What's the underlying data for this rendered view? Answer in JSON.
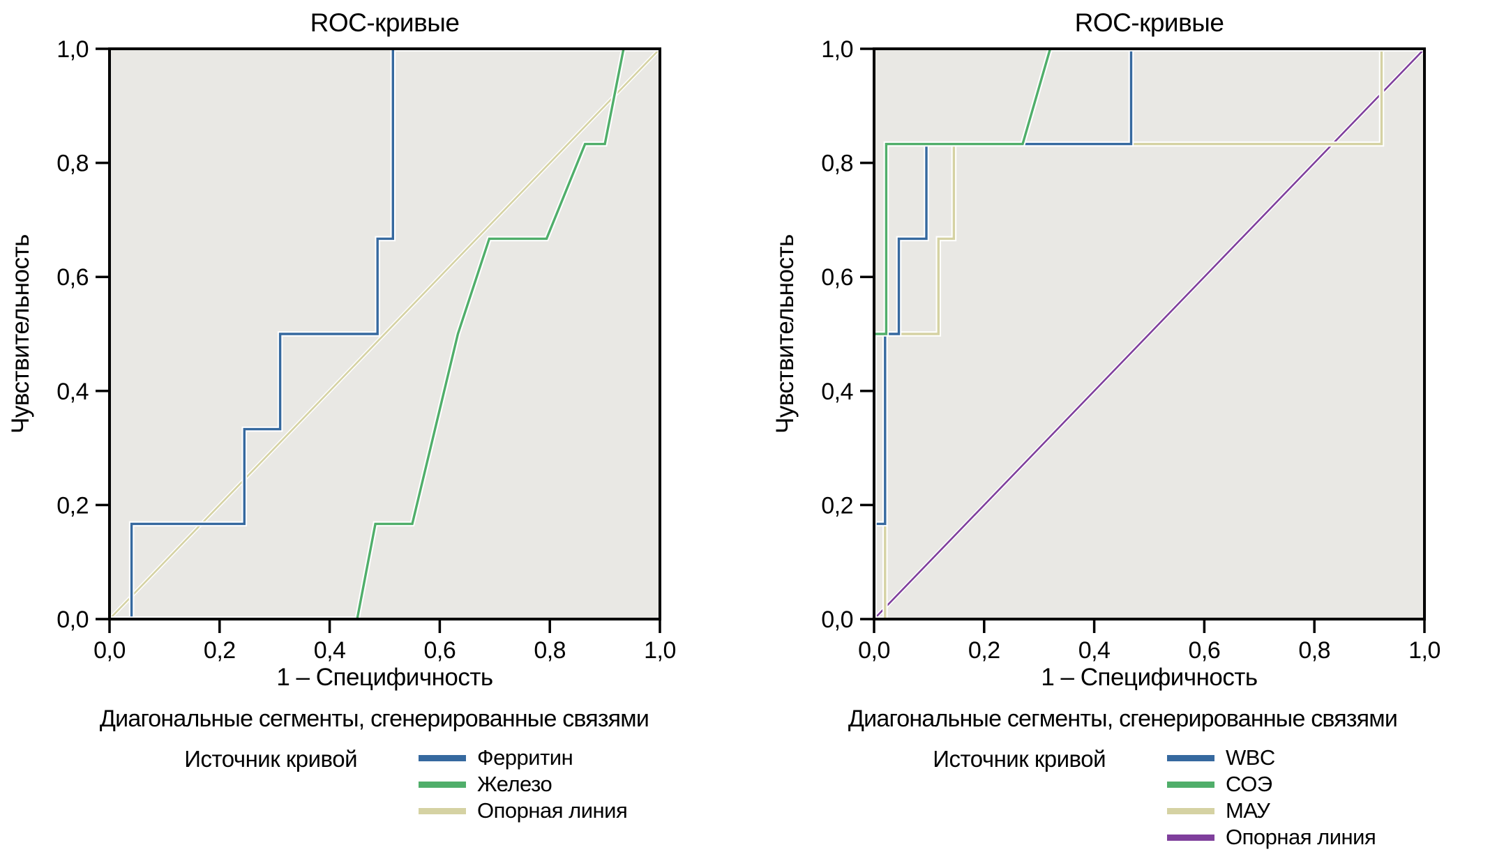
{
  "chart_data": [
    {
      "type": "line",
      "title": "ROC-кривые",
      "xlabel": "1 – Специфичность",
      "ylabel": "Чувствительность",
      "footer": "Диагональные сегменты, сгенерированные связями",
      "legend_title": "Источник кривой",
      "legend_position": "below",
      "grid": false,
      "plot_bg": "#e9e8e4",
      "frame_color": "#000000",
      "xlim": [
        0,
        1
      ],
      "ylim": [
        0,
        1
      ],
      "tick_values": [
        0,
        0.2,
        0.4,
        0.6,
        0.8,
        1
      ],
      "xtick_labels": [
        "0,0",
        "0,2",
        "0,4",
        "0,6",
        "0,8",
        "1,0"
      ],
      "ytick_labels": [
        "0,0",
        "0,2",
        "0,4",
        "0,6",
        "0,8",
        "1,0"
      ],
      "series": [
        {
          "name": "Ферритин",
          "color": "#36699f",
          "z": 1,
          "reference": false,
          "points": [
            [
              0,
              0
            ],
            [
              0.04,
              0
            ],
            [
              0.04,
              0.167
            ],
            [
              0.245,
              0.167
            ],
            [
              0.245,
              0.333
            ],
            [
              0.31,
              0.333
            ],
            [
              0.31,
              0.5
            ],
            [
              0.487,
              0.5
            ],
            [
              0.487,
              0.667
            ],
            [
              0.515,
              0.667
            ],
            [
              0.515,
              1
            ],
            [
              1,
              1
            ]
          ]
        },
        {
          "name": "Железо",
          "color": "#50ae6a",
          "z": 2,
          "reference": false,
          "points": [
            [
              0,
              0
            ],
            [
              0.45,
              0
            ],
            [
              0.483,
              0.167
            ],
            [
              0.55,
              0.167
            ],
            [
              0.633,
              0.5
            ],
            [
              0.69,
              0.667
            ],
            [
              0.794,
              0.667
            ],
            [
              0.864,
              0.833
            ],
            [
              0.9,
              0.833
            ],
            [
              0.934,
              1
            ],
            [
              1,
              1
            ]
          ]
        },
        {
          "name": "Опорная линия",
          "color": "#d5d2a3",
          "z": 0,
          "reference": true,
          "points": [
            [
              0,
              0
            ],
            [
              1,
              1
            ]
          ]
        }
      ]
    },
    {
      "type": "line",
      "title": "ROC-кривые",
      "xlabel": "1 – Специфичность",
      "ylabel": "Чувствительность",
      "footer": "Диагональные сегменты, сгенерированные связями",
      "legend_title": "Источник кривой",
      "legend_position": "below",
      "grid": false,
      "plot_bg": "#e9e8e4",
      "frame_color": "#000000",
      "xlim": [
        0,
        1
      ],
      "ylim": [
        0,
        1
      ],
      "tick_values": [
        0,
        0.2,
        0.4,
        0.6,
        0.8,
        1
      ],
      "xtick_labels": [
        "0,0",
        "0,2",
        "0,4",
        "0,6",
        "0,8",
        "1,0"
      ],
      "ytick_labels": [
        "0,0",
        "0,2",
        "0,4",
        "0,6",
        "0,8",
        "1,0"
      ],
      "series": [
        {
          "name": "WBC",
          "color": "#36699f",
          "z": 2,
          "reference": false,
          "points": [
            [
              0,
              0
            ],
            [
              0,
              0.167
            ],
            [
              0.02,
              0.167
            ],
            [
              0.02,
              0.5
            ],
            [
              0.045,
              0.5
            ],
            [
              0.045,
              0.667
            ],
            [
              0.095,
              0.667
            ],
            [
              0.095,
              0.833
            ],
            [
              0.467,
              0.833
            ],
            [
              0.467,
              1
            ],
            [
              1,
              1
            ]
          ]
        },
        {
          "name": "СОЭ",
          "color": "#50ae6a",
          "z": 3,
          "reference": false,
          "points": [
            [
              0,
              0
            ],
            [
              0,
              0.5
            ],
            [
              0.022,
              0.5
            ],
            [
              0.022,
              0.833
            ],
            [
              0.27,
              0.833
            ],
            [
              0.32,
              1
            ],
            [
              1,
              1
            ]
          ]
        },
        {
          "name": "МАУ",
          "color": "#d5d2a3",
          "z": 1,
          "reference": false,
          "points": [
            [
              0,
              0
            ],
            [
              0.02,
              0
            ],
            [
              0.02,
              0.5
            ],
            [
              0.117,
              0.5
            ],
            [
              0.117,
              0.667
            ],
            [
              0.145,
              0.667
            ],
            [
              0.145,
              0.833
            ],
            [
              0.922,
              0.833
            ],
            [
              0.922,
              1
            ],
            [
              1,
              1
            ]
          ]
        },
        {
          "name": "Опорная линия",
          "color": "#7f3f9c",
          "z": 0,
          "reference": true,
          "points": [
            [
              0,
              0
            ],
            [
              1,
              1
            ]
          ]
        }
      ]
    }
  ]
}
